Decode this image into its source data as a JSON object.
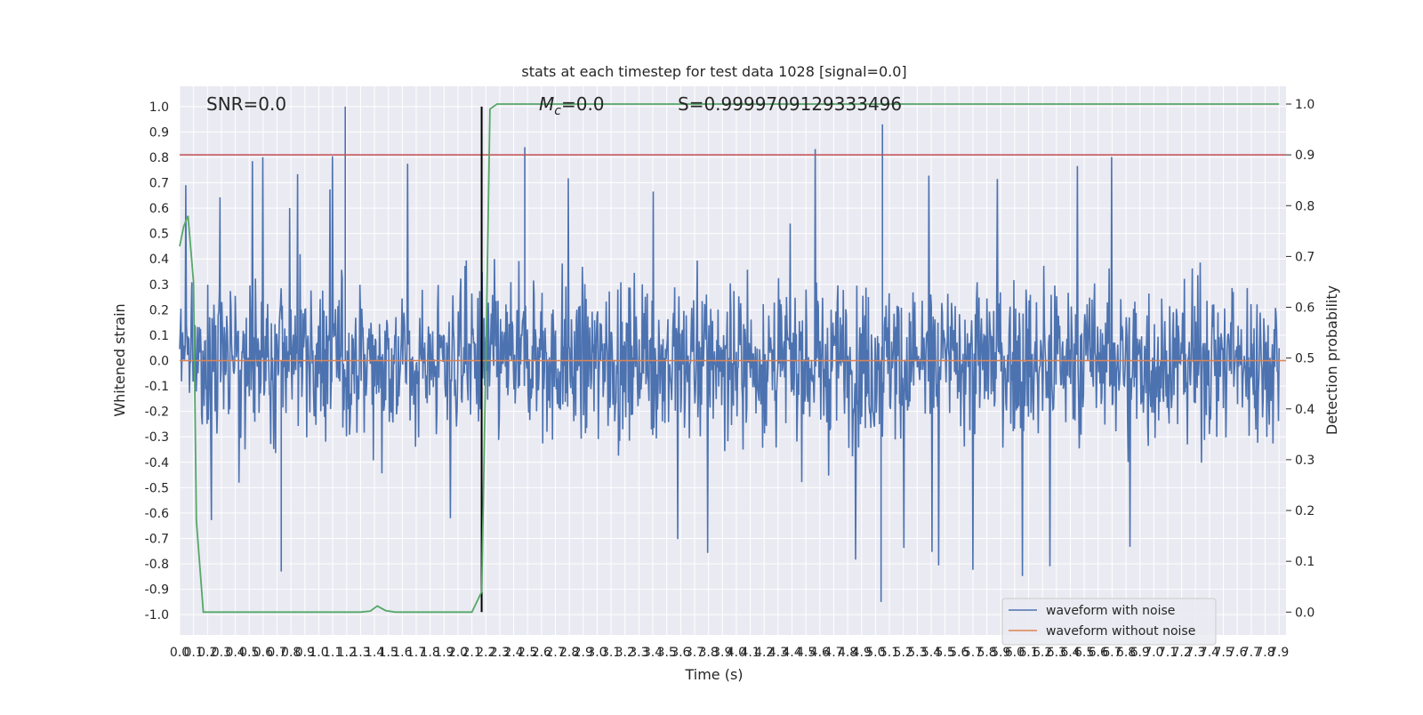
{
  "chart_data": {
    "type": "line",
    "title": "stats at each timestep for test data 1028 [signal=0.0]",
    "xlabel": "Time (s)",
    "ylabel_left": "Whitened strain",
    "ylabel_right": "Detection probability",
    "xlim": [
      0.0,
      7.95
    ],
    "ylim_left": [
      -1.08,
      1.08
    ],
    "ylim_right": [
      -0.045,
      1.035
    ],
    "x_ticks": [
      "0.0",
      "0.1",
      "0.2",
      "0.3",
      "0.4",
      "0.5",
      "0.6",
      "0.7",
      "0.8",
      "0.9",
      "1.0",
      "1.1",
      "1.2",
      "1.3",
      "1.4",
      "1.5",
      "1.6",
      "1.7",
      "1.8",
      "1.9",
      "2.0",
      "2.1",
      "2.2",
      "2.3",
      "2.4",
      "2.5",
      "2.6",
      "2.7",
      "2.8",
      "2.9",
      "3.0",
      "3.1",
      "3.2",
      "3.3",
      "3.4",
      "3.5",
      "3.6",
      "3.7",
      "3.8",
      "3.9",
      "4.0",
      "4.1",
      "4.2",
      "4.3",
      "4.4",
      "4.5",
      "4.6",
      "4.7",
      "4.8",
      "4.9",
      "5.0",
      "5.1",
      "5.2",
      "5.3",
      "5.4",
      "5.5",
      "5.6",
      "5.7",
      "5.8",
      "5.9",
      "6.0",
      "6.1",
      "6.2",
      "6.3",
      "6.4",
      "6.5",
      "6.6",
      "6.7",
      "6.8",
      "6.9",
      "7.0",
      "7.1",
      "7.2",
      "7.3",
      "7.4",
      "7.5",
      "7.6",
      "7.7",
      "7.8",
      "7.9"
    ],
    "y_ticks_left": [
      "1.0",
      "0.9",
      "0.8",
      "0.7",
      "0.6",
      "0.5",
      "0.4",
      "0.3",
      "0.2",
      "0.1",
      "0.0",
      "-0.1",
      "-0.2",
      "-0.3",
      "-0.4",
      "-0.5",
      "-0.6",
      "-0.7",
      "-0.8",
      "-0.9",
      "-1.0"
    ],
    "y_ticks_right": [
      "1.0",
      "0.9",
      "0.8",
      "0.7",
      "0.6",
      "0.5",
      "0.4",
      "0.3",
      "0.2",
      "0.1",
      "0.0"
    ],
    "grid": true,
    "legend_position": "lower-right",
    "annotations": {
      "snr": "SNR=0.0",
      "mc_symbol": "M",
      "mc_sub": "c",
      "mc_value": "=0.0",
      "s": "S=0.9999709129333496"
    },
    "noise_series": {
      "name": "waveform with noise",
      "color": "#4c72b0",
      "description_amplitude_envelope": [
        0.3,
        0.45
      ],
      "max": 1.0,
      "min": -0.95
    },
    "clean_series": {
      "name": "waveform without noise",
      "color": "#dd8452",
      "values_constant": 0.0
    },
    "probability_series": {
      "color": "#55a868",
      "x": [
        0.0,
        0.03,
        0.06,
        0.1,
        0.12,
        0.17,
        0.2,
        0.25,
        1.3,
        1.37,
        1.42,
        1.48,
        1.55,
        2.1,
        2.17,
        2.2,
        2.23,
        2.28,
        2.35,
        7.9
      ],
      "y": [
        0.72,
        0.76,
        0.78,
        0.65,
        0.18,
        0.0,
        0.0,
        0.0,
        0.0,
        0.002,
        0.012,
        0.003,
        0.0,
        0.0,
        0.04,
        0.5,
        0.99,
        1.0,
        1.0,
        1.0
      ]
    },
    "threshold": {
      "y_right": 0.9,
      "color": "#c44e52"
    },
    "vertical_marker": {
      "x": 2.17,
      "color": "#000000"
    },
    "random_seed": 1028
  }
}
